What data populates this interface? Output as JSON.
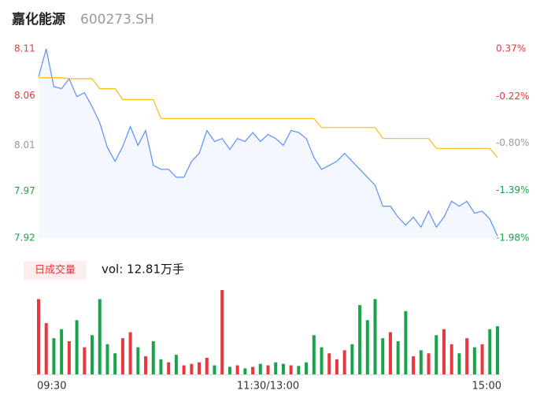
{
  "header": {
    "title": "嘉化能源",
    "code": "600273.SH"
  },
  "chart_data": {
    "type": "intraday",
    "categories": [
      "09:30",
      null,
      null,
      null,
      null,
      null,
      null,
      null,
      null,
      null,
      null,
      null,
      null,
      null,
      null,
      null,
      null,
      null,
      null,
      null,
      null,
      null,
      null,
      null,
      null,
      null,
      null,
      null,
      null,
      null,
      "11:30/13:00",
      null,
      null,
      null,
      null,
      null,
      null,
      null,
      null,
      null,
      null,
      null,
      null,
      null,
      null,
      null,
      null,
      null,
      null,
      null,
      null,
      null,
      null,
      null,
      null,
      null,
      null,
      null,
      null,
      null,
      "15:00"
    ],
    "series": [
      {
        "name": "price",
        "color": "#5b8ff9",
        "values": [
          8.082,
          8.11,
          8.072,
          8.07,
          8.08,
          8.062,
          8.066,
          8.052,
          8.036,
          8.011,
          7.997,
          8.012,
          8.032,
          8.013,
          8.028,
          7.993,
          7.989,
          7.989,
          7.981,
          7.981,
          7.997,
          8.005,
          8.028,
          8.017,
          8.02,
          8.009,
          8.02,
          8.017,
          8.026,
          8.017,
          8.024,
          8.02,
          8.013,
          8.028,
          8.026,
          8.02,
          8.001,
          7.989,
          7.993,
          7.997,
          8.005,
          7.997,
          7.989,
          7.981,
          7.973,
          7.952,
          7.952,
          7.941,
          7.933,
          7.941,
          7.931,
          7.947,
          7.931,
          7.941,
          7.957,
          7.952,
          7.957,
          7.945,
          7.947,
          7.939,
          7.922
        ]
      },
      {
        "name": "average",
        "color": "#f6bd16",
        "values": [
          8.081,
          8.081,
          8.081,
          8.081,
          8.08,
          8.08,
          8.08,
          8.08,
          8.07,
          8.07,
          8.07,
          8.059,
          8.059,
          8.059,
          8.059,
          8.059,
          8.04,
          8.04,
          8.04,
          8.04,
          8.04,
          8.04,
          8.04,
          8.04,
          8.04,
          8.04,
          8.04,
          8.04,
          8.04,
          8.04,
          8.04,
          8.04,
          8.04,
          8.04,
          8.04,
          8.04,
          8.04,
          8.031,
          8.031,
          8.031,
          8.031,
          8.031,
          8.031,
          8.031,
          8.031,
          8.02,
          8.02,
          8.02,
          8.02,
          8.02,
          8.02,
          8.02,
          8.01,
          8.01,
          8.01,
          8.01,
          8.01,
          8.01,
          8.01,
          8.01,
          8.001
        ]
      }
    ],
    "volume": [
      2500,
      1700,
      1200,
      1500,
      1100,
      1800,
      900,
      1300,
      2500,
      1000,
      700,
      1200,
      1400,
      900,
      600,
      1100,
      500,
      400,
      650,
      300,
      350,
      400,
      550,
      300,
      2800,
      250,
      300,
      200,
      250,
      350,
      300,
      400,
      350,
      300,
      280,
      400,
      1300,
      900,
      700,
      500,
      800,
      1000,
      2300,
      1800,
      2500,
      1200,
      1400,
      1100,
      2100,
      600,
      800,
      700,
      1300,
      1500,
      1000,
      700,
      1200,
      900,
      1000,
      1500,
      1600
    ],
    "up_color": "#e8383d",
    "down_color": "#1aa34a",
    "ylim": [
      7.92,
      8.11
    ],
    "yticks": [
      7.92,
      {
        "value": 7.967,
        "label": "7.97"
      },
      {
        "value": 8.013,
        "label": "8.01"
      },
      {
        "value": 8.063,
        "label": "8.06"
      },
      8.11
    ],
    "y2lim": [
      -1.98,
      0.37
    ],
    "y2ticks": [
      {
        "value": -1.98,
        "label": "-1.98%"
      },
      {
        "value": -1.39,
        "label": "-1.39%"
      },
      {
        "value": -0.8,
        "label": "-0.80%"
      },
      {
        "value": -0.22,
        "label": "-0.22%"
      },
      {
        "value": 0.37,
        "label": "0.37%"
      }
    ],
    "tick_colors": [
      "#1aa34a",
      "#1aa34a",
      "#999999",
      "#e8383d",
      "#e8383d"
    ],
    "volume_title": "日成交量",
    "volume_text": "vol: 12.81万手"
  }
}
